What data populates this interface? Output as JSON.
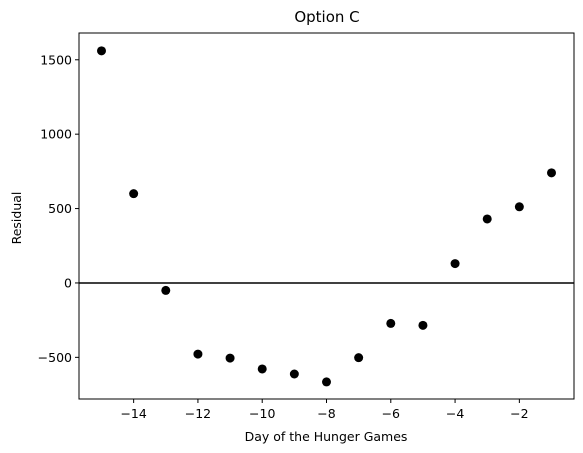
{
  "chart_data": {
    "type": "scatter",
    "title": "Option C",
    "xlabel": "Day of the Hunger Games",
    "ylabel": "Residual",
    "xlim": [
      -15.7,
      -0.3
    ],
    "ylim": [
      -780,
      1680
    ],
    "x_ticks": [
      -14,
      -12,
      -10,
      -8,
      -6,
      -4,
      -2
    ],
    "x_tick_labels": [
      "−14",
      "−12",
      "−10",
      "−8",
      "−6",
      "−4",
      "−2"
    ],
    "y_ticks": [
      -500,
      0,
      500,
      1000,
      1500
    ],
    "y_tick_labels": [
      "−500",
      "0",
      "500",
      "1000",
      "1500"
    ],
    "reference_line": {
      "y": 0,
      "color": "#000000"
    },
    "marker_color": "#000000",
    "grid": false,
    "points": [
      {
        "x": -15,
        "y": 1560
      },
      {
        "x": -14,
        "y": 600
      },
      {
        "x": -13,
        "y": -50
      },
      {
        "x": -12,
        "y": -478
      },
      {
        "x": -11,
        "y": -505
      },
      {
        "x": -10,
        "y": -578
      },
      {
        "x": -9,
        "y": -612
      },
      {
        "x": -8,
        "y": -665
      },
      {
        "x": -7,
        "y": -502
      },
      {
        "x": -6,
        "y": -272
      },
      {
        "x": -5,
        "y": -285
      },
      {
        "x": -4,
        "y": 130
      },
      {
        "x": -3,
        "y": 430
      },
      {
        "x": -2,
        "y": 512
      },
      {
        "x": -1,
        "y": 740
      }
    ]
  }
}
